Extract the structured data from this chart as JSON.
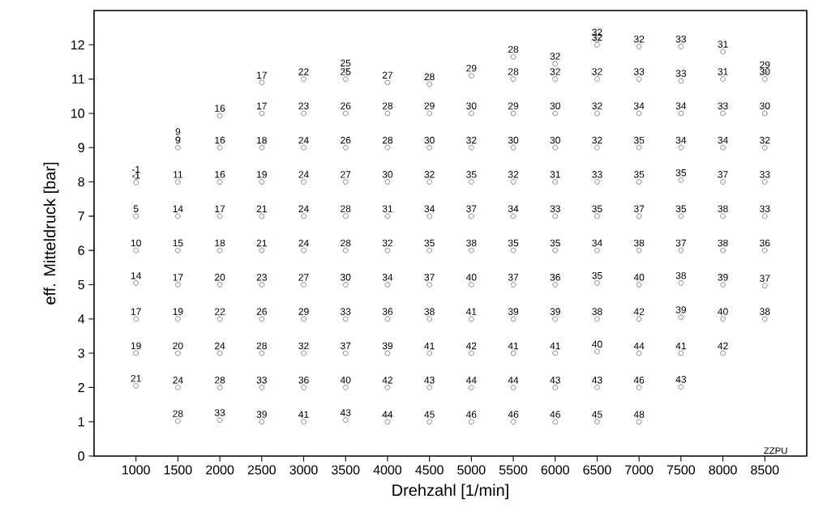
{
  "chart_data": {
    "type": "scatter",
    "xlabel": "Drehzahl [1/min]",
    "ylabel": "eff. Mitteldruck [bar]",
    "xlim": [
      500,
      9000
    ],
    "ylim": [
      0,
      13
    ],
    "xticks": [
      1000,
      1500,
      2000,
      2500,
      3000,
      3500,
      4000,
      4500,
      5000,
      5500,
      6000,
      6500,
      7000,
      7500,
      8000,
      8500
    ],
    "yticks": [
      0,
      1,
      2,
      3,
      4,
      5,
      6,
      7,
      8,
      9,
      10,
      11,
      12
    ],
    "grid": false,
    "marker": "circle",
    "annotations": [
      "ZZPU",
      {
        "text": "-1",
        "x": 1000,
        "y": 8.15
      },
      {
        "text": "-1",
        "x": 1000,
        "y": 7.98
      },
      {
        "text": "5",
        "x": 1000,
        "y": 7
      },
      {
        "text": "10",
        "x": 1000,
        "y": 6
      },
      {
        "text": "14",
        "x": 1000,
        "y": 5.05
      },
      {
        "text": "17",
        "x": 1000,
        "y": 4
      },
      {
        "text": "19",
        "x": 1000,
        "y": 3
      },
      {
        "text": "21",
        "x": 1000,
        "y": 2.05
      },
      {
        "text": "9",
        "x": 1500,
        "y": 9.25
      },
      {
        "text": "9",
        "x": 1500,
        "y": 9
      },
      {
        "text": "11",
        "x": 1500,
        "y": 8
      },
      {
        "text": "14",
        "x": 1500,
        "y": 7
      },
      {
        "text": "15",
        "x": 1500,
        "y": 6
      },
      {
        "text": "17",
        "x": 1500,
        "y": 5
      },
      {
        "text": "19",
        "x": 1500,
        "y": 4
      },
      {
        "text": "20",
        "x": 1500,
        "y": 3
      },
      {
        "text": "24",
        "x": 1500,
        "y": 2
      },
      {
        "text": "28",
        "x": 1500,
        "y": 1.02
      },
      {
        "text": "16",
        "x": 2000,
        "y": 9.93
      },
      {
        "text": "16",
        "x": 2000,
        "y": 9
      },
      {
        "text": "16",
        "x": 2000,
        "y": 8
      },
      {
        "text": "17",
        "x": 2000,
        "y": 7
      },
      {
        "text": "18",
        "x": 2000,
        "y": 6
      },
      {
        "text": "20",
        "x": 2000,
        "y": 5
      },
      {
        "text": "22",
        "x": 2000,
        "y": 4
      },
      {
        "text": "24",
        "x": 2000,
        "y": 3
      },
      {
        "text": "28",
        "x": 2000,
        "y": 2
      },
      {
        "text": "33",
        "x": 2000,
        "y": 1.05
      },
      {
        "text": "17",
        "x": 2500,
        "y": 10.9
      },
      {
        "text": "17",
        "x": 2500,
        "y": 10
      },
      {
        "text": "18",
        "x": 2500,
        "y": 9
      },
      {
        "text": "19",
        "x": 2500,
        "y": 8
      },
      {
        "text": "21",
        "x": 2500,
        "y": 7
      },
      {
        "text": "21",
        "x": 2500,
        "y": 6
      },
      {
        "text": "23",
        "x": 2500,
        "y": 5
      },
      {
        "text": "26",
        "x": 2500,
        "y": 4
      },
      {
        "text": "28",
        "x": 2500,
        "y": 3
      },
      {
        "text": "33",
        "x": 2500,
        "y": 2
      },
      {
        "text": "39",
        "x": 2500,
        "y": 1
      },
      {
        "text": "22",
        "x": 3000,
        "y": 11
      },
      {
        "text": "23",
        "x": 3000,
        "y": 10
      },
      {
        "text": "24",
        "x": 3000,
        "y": 9
      },
      {
        "text": "24",
        "x": 3000,
        "y": 8
      },
      {
        "text": "24",
        "x": 3000,
        "y": 7
      },
      {
        "text": "24",
        "x": 3000,
        "y": 6
      },
      {
        "text": "27",
        "x": 3000,
        "y": 5
      },
      {
        "text": "29",
        "x": 3000,
        "y": 4
      },
      {
        "text": "32",
        "x": 3000,
        "y": 3
      },
      {
        "text": "36",
        "x": 3000,
        "y": 2
      },
      {
        "text": "41",
        "x": 3000,
        "y": 1
      },
      {
        "text": "25",
        "x": 3500,
        "y": 11.25
      },
      {
        "text": "25",
        "x": 3500,
        "y": 11
      },
      {
        "text": "26",
        "x": 3500,
        "y": 10
      },
      {
        "text": "26",
        "x": 3500,
        "y": 9
      },
      {
        "text": "27",
        "x": 3500,
        "y": 8
      },
      {
        "text": "28",
        "x": 3500,
        "y": 7
      },
      {
        "text": "28",
        "x": 3500,
        "y": 6
      },
      {
        "text": "30",
        "x": 3500,
        "y": 5
      },
      {
        "text": "33",
        "x": 3500,
        "y": 4
      },
      {
        "text": "37",
        "x": 3500,
        "y": 3
      },
      {
        "text": "40",
        "x": 3500,
        "y": 2
      },
      {
        "text": "43",
        "x": 3500,
        "y": 1.05
      },
      {
        "text": "27",
        "x": 4000,
        "y": 10.9
      },
      {
        "text": "28",
        "x": 4000,
        "y": 10
      },
      {
        "text": "28",
        "x": 4000,
        "y": 9
      },
      {
        "text": "30",
        "x": 4000,
        "y": 8
      },
      {
        "text": "31",
        "x": 4000,
        "y": 7
      },
      {
        "text": "32",
        "x": 4000,
        "y": 6
      },
      {
        "text": "34",
        "x": 4000,
        "y": 5
      },
      {
        "text": "36",
        "x": 4000,
        "y": 4
      },
      {
        "text": "39",
        "x": 4000,
        "y": 3
      },
      {
        "text": "42",
        "x": 4000,
        "y": 2
      },
      {
        "text": "44",
        "x": 4000,
        "y": 1
      },
      {
        "text": "28",
        "x": 4500,
        "y": 10.85
      },
      {
        "text": "29",
        "x": 4500,
        "y": 10
      },
      {
        "text": "30",
        "x": 4500,
        "y": 9
      },
      {
        "text": "32",
        "x": 4500,
        "y": 8
      },
      {
        "text": "34",
        "x": 4500,
        "y": 7
      },
      {
        "text": "35",
        "x": 4500,
        "y": 6
      },
      {
        "text": "37",
        "x": 4500,
        "y": 5
      },
      {
        "text": "38",
        "x": 4500,
        "y": 4
      },
      {
        "text": "41",
        "x": 4500,
        "y": 3
      },
      {
        "text": "43",
        "x": 4500,
        "y": 2
      },
      {
        "text": "45",
        "x": 4500,
        "y": 1
      },
      {
        "text": "29",
        "x": 5000,
        "y": 11.1
      },
      {
        "text": "30",
        "x": 5000,
        "y": 10
      },
      {
        "text": "32",
        "x": 5000,
        "y": 9
      },
      {
        "text": "35",
        "x": 5000,
        "y": 8
      },
      {
        "text": "37",
        "x": 5000,
        "y": 7
      },
      {
        "text": "38",
        "x": 5000,
        "y": 6
      },
      {
        "text": "40",
        "x": 5000,
        "y": 5
      },
      {
        "text": "41",
        "x": 5000,
        "y": 4
      },
      {
        "text": "42",
        "x": 5000,
        "y": 3
      },
      {
        "text": "44",
        "x": 5000,
        "y": 2
      },
      {
        "text": "46",
        "x": 5000,
        "y": 1
      },
      {
        "text": "28",
        "x": 5500,
        "y": 11.65
      },
      {
        "text": "28",
        "x": 5500,
        "y": 11
      },
      {
        "text": "29",
        "x": 5500,
        "y": 10
      },
      {
        "text": "30",
        "x": 5500,
        "y": 9
      },
      {
        "text": "32",
        "x": 5500,
        "y": 8
      },
      {
        "text": "34",
        "x": 5500,
        "y": 7
      },
      {
        "text": "35",
        "x": 5500,
        "y": 6
      },
      {
        "text": "37",
        "x": 5500,
        "y": 5
      },
      {
        "text": "39",
        "x": 5500,
        "y": 4
      },
      {
        "text": "41",
        "x": 5500,
        "y": 3
      },
      {
        "text": "44",
        "x": 5500,
        "y": 2
      },
      {
        "text": "46",
        "x": 5500,
        "y": 1
      },
      {
        "text": "32",
        "x": 6000,
        "y": 11.45
      },
      {
        "text": "32",
        "x": 6000,
        "y": 11
      },
      {
        "text": "30",
        "x": 6000,
        "y": 10
      },
      {
        "text": "30",
        "x": 6000,
        "y": 9
      },
      {
        "text": "31",
        "x": 6000,
        "y": 8
      },
      {
        "text": "33",
        "x": 6000,
        "y": 7
      },
      {
        "text": "35",
        "x": 6000,
        "y": 6
      },
      {
        "text": "36",
        "x": 6000,
        "y": 5
      },
      {
        "text": "39",
        "x": 6000,
        "y": 4
      },
      {
        "text": "41",
        "x": 6000,
        "y": 3
      },
      {
        "text": "43",
        "x": 6000,
        "y": 2
      },
      {
        "text": "46",
        "x": 6000,
        "y": 1
      },
      {
        "text": "32",
        "x": 6500,
        "y": 12.15
      },
      {
        "text": "32",
        "x": 6500,
        "y": 12
      },
      {
        "text": "32",
        "x": 6500,
        "y": 11
      },
      {
        "text": "32",
        "x": 6500,
        "y": 10
      },
      {
        "text": "32",
        "x": 6500,
        "y": 9
      },
      {
        "text": "33",
        "x": 6500,
        "y": 8
      },
      {
        "text": "35",
        "x": 6500,
        "y": 7
      },
      {
        "text": "34",
        "x": 6500,
        "y": 6
      },
      {
        "text": "35",
        "x": 6500,
        "y": 5.05
      },
      {
        "text": "38",
        "x": 6500,
        "y": 4
      },
      {
        "text": "40",
        "x": 6500,
        "y": 3.05
      },
      {
        "text": "43",
        "x": 6500,
        "y": 2
      },
      {
        "text": "45",
        "x": 6500,
        "y": 1
      },
      {
        "text": "32",
        "x": 7000,
        "y": 11.95
      },
      {
        "text": "33",
        "x": 7000,
        "y": 11
      },
      {
        "text": "34",
        "x": 7000,
        "y": 10
      },
      {
        "text": "35",
        "x": 7000,
        "y": 9
      },
      {
        "text": "35",
        "x": 7000,
        "y": 8
      },
      {
        "text": "37",
        "x": 7000,
        "y": 7
      },
      {
        "text": "38",
        "x": 7000,
        "y": 6
      },
      {
        "text": "40",
        "x": 7000,
        "y": 5
      },
      {
        "text": "42",
        "x": 7000,
        "y": 4
      },
      {
        "text": "44",
        "x": 7000,
        "y": 3
      },
      {
        "text": "46",
        "x": 7000,
        "y": 2
      },
      {
        "text": "48",
        "x": 7000,
        "y": 1
      },
      {
        "text": "33",
        "x": 7500,
        "y": 11.95
      },
      {
        "text": "33",
        "x": 7500,
        "y": 10.95
      },
      {
        "text": "34",
        "x": 7500,
        "y": 10
      },
      {
        "text": "34",
        "x": 7500,
        "y": 9
      },
      {
        "text": "35",
        "x": 7500,
        "y": 8.05
      },
      {
        "text": "35",
        "x": 7500,
        "y": 7
      },
      {
        "text": "37",
        "x": 7500,
        "y": 6
      },
      {
        "text": "38",
        "x": 7500,
        "y": 5.05
      },
      {
        "text": "39",
        "x": 7500,
        "y": 4.05
      },
      {
        "text": "41",
        "x": 7500,
        "y": 3
      },
      {
        "text": "43",
        "x": 7500,
        "y": 2.02
      },
      {
        "text": "31",
        "x": 8000,
        "y": 11.8
      },
      {
        "text": "31",
        "x": 8000,
        "y": 11
      },
      {
        "text": "33",
        "x": 8000,
        "y": 10
      },
      {
        "text": "34",
        "x": 8000,
        "y": 9
      },
      {
        "text": "37",
        "x": 8000,
        "y": 8
      },
      {
        "text": "38",
        "x": 8000,
        "y": 7
      },
      {
        "text": "38",
        "x": 8000,
        "y": 6
      },
      {
        "text": "39",
        "x": 8000,
        "y": 5
      },
      {
        "text": "40",
        "x": 8000,
        "y": 4
      },
      {
        "text": "42",
        "x": 8000,
        "y": 3
      },
      {
        "text": "29",
        "x": 8500,
        "y": 11.2
      },
      {
        "text": "30",
        "x": 8500,
        "y": 11
      },
      {
        "text": "30",
        "x": 8500,
        "y": 10
      },
      {
        "text": "32",
        "x": 8500,
        "y": 9
      },
      {
        "text": "33",
        "x": 8500,
        "y": 8
      },
      {
        "text": "33",
        "x": 8500,
        "y": 7
      },
      {
        "text": "36",
        "x": 8500,
        "y": 6
      },
      {
        "text": "37",
        "x": 8500,
        "y": 4.97
      },
      {
        "text": "38",
        "x": 8500,
        "y": 4
      }
    ],
    "series": [
      {
        "color": "#505050",
        "x": [
          1000,
          1000,
          1000,
          1000,
          1000,
          1000,
          1000,
          1000,
          1500,
          1500,
          1500,
          1500,
          1500,
          1500,
          1500,
          1500,
          1500,
          1500,
          2000,
          2000,
          2000,
          2000,
          2000,
          2000,
          2000,
          2000,
          2000,
          2000,
          2500,
          2500,
          2500,
          2500,
          2500,
          2500,
          2500,
          2500,
          2500,
          2500,
          2500,
          3000,
          3000,
          3000,
          3000,
          3000,
          3000,
          3000,
          3000,
          3000,
          3000,
          3000,
          3500,
          3500,
          3500,
          3500,
          3500,
          3500,
          3500,
          3500,
          3500,
          3500,
          3500,
          3500,
          4000,
          4000,
          4000,
          4000,
          4000,
          4000,
          4000,
          4000,
          4000,
          4000,
          4000,
          4500,
          4500,
          4500,
          4500,
          4500,
          4500,
          4500,
          4500,
          4500,
          4500,
          4500,
          5000,
          5000,
          5000,
          5000,
          5000,
          5000,
          5000,
          5000,
          5000,
          5000,
          5000,
          5500,
          5500,
          5500,
          5500,
          5500,
          5500,
          5500,
          5500,
          5500,
          5500,
          5500,
          5500,
          6000,
          6000,
          6000,
          6000,
          6000,
          6000,
          6000,
          6000,
          6000,
          6000,
          6000,
          6000,
          6500,
          6500,
          6500,
          6500,
          6500,
          6500,
          6500,
          6500,
          6500,
          6500,
          6500,
          6500,
          6500,
          7000,
          7000,
          7000,
          7000,
          7000,
          7000,
          7000,
          7000,
          7000,
          7000,
          7000,
          7000,
          7500,
          7500,
          7500,
          7500,
          7500,
          7500,
          7500,
          7500,
          7500,
          7500,
          7500,
          8000,
          8000,
          8000,
          8000,
          8000,
          8000,
          8000,
          8000,
          8000,
          8000,
          8500,
          8500,
          8500,
          8500,
          8500,
          8500,
          8500,
          8500,
          8500
        ],
        "values": [
          8.15,
          7.98,
          7,
          6,
          5.05,
          4,
          3,
          2.05,
          9.25,
          9,
          8,
          7,
          6,
          5,
          4,
          3,
          2,
          1.02,
          9.93,
          9,
          8,
          7,
          6,
          5,
          4,
          3,
          2,
          1.05,
          10.9,
          10,
          9,
          8,
          7,
          6,
          5,
          4,
          3,
          2,
          1,
          11,
          10,
          9,
          8,
          7,
          6,
          5,
          4,
          3,
          2,
          1,
          11.25,
          11,
          10,
          9,
          8,
          7,
          6,
          5,
          4,
          3,
          2,
          1.05,
          10.9,
          10,
          9,
          8,
          7,
          6,
          5,
          4,
          3,
          2,
          1,
          10.85,
          10,
          9,
          8,
          7,
          6,
          5,
          4,
          3,
          2,
          1,
          11.1,
          10,
          9,
          8,
          7,
          6,
          5,
          4,
          3,
          2,
          1,
          11.65,
          11,
          10,
          9,
          8,
          7,
          6,
          5,
          4,
          3,
          2,
          1,
          11.45,
          11,
          10,
          9,
          8,
          7,
          6,
          5,
          4,
          3,
          2,
          1,
          12.15,
          12,
          11,
          10,
          9,
          8,
          7,
          6,
          5.05,
          4,
          3.05,
          2,
          1,
          11.95,
          11,
          10,
          9,
          8,
          7,
          6,
          5,
          4,
          3,
          2,
          1,
          11.95,
          10.95,
          10,
          9,
          8.05,
          7,
          6,
          5.05,
          4.05,
          3,
          2.02,
          11.8,
          11,
          10,
          9,
          8,
          7,
          6,
          5,
          4,
          3,
          11.2,
          11,
          10,
          9,
          8,
          7,
          6,
          4.97,
          4
        ]
      }
    ]
  }
}
